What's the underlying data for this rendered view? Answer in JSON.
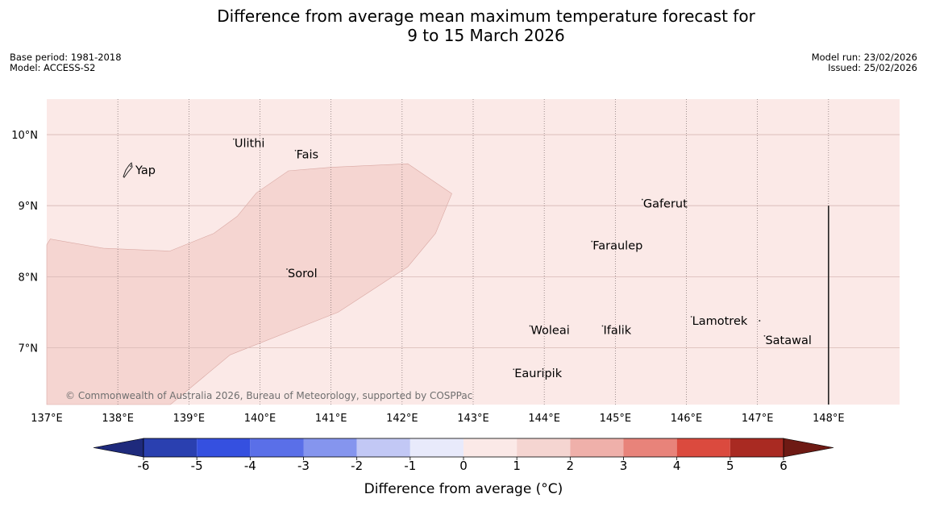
{
  "title": {
    "line1": "Difference from average mean maximum temperature forecast for",
    "line2": "9 to 15 March 2026"
  },
  "meta": {
    "base_period": "Base period: 1981-2018",
    "model": "Model: ACCESS-S2",
    "model_run": "Model run: 23/02/2026",
    "issued": "Issued: 25/02/2026"
  },
  "map": {
    "background_color": "#fbe9e7",
    "anomaly_band_color": "#f5d5d1",
    "extent": {
      "lon": [
        137,
        149
      ],
      "lat": [
        6.2,
        10.5
      ]
    },
    "lon_ticks": [
      {
        "lon": 137,
        "label": "137°E"
      },
      {
        "lon": 138,
        "label": "138°E"
      },
      {
        "lon": 139,
        "label": "139°E"
      },
      {
        "lon": 140,
        "label": "140°E"
      },
      {
        "lon": 141,
        "label": "141°E"
      },
      {
        "lon": 142,
        "label": "142°E"
      },
      {
        "lon": 143,
        "label": "143°E"
      },
      {
        "lon": 144,
        "label": "144°E"
      },
      {
        "lon": 145,
        "label": "145°E"
      },
      {
        "lon": 146,
        "label": "146°E"
      },
      {
        "lon": 147,
        "label": "147°E"
      },
      {
        "lon": 148,
        "label": "148°E"
      }
    ],
    "lat_ticks": [
      {
        "lat": 10,
        "label": "10°N"
      },
      {
        "lat": 9,
        "label": "9°N"
      },
      {
        "lat": 8,
        "label": "8°N"
      },
      {
        "lat": 7,
        "label": "7°N"
      }
    ],
    "places": [
      {
        "name": "Yap",
        "lon": 138.18,
        "lat": 9.5
      },
      {
        "name": "Ulithi",
        "lon": 139.63,
        "lat": 9.88
      },
      {
        "name": "Fais",
        "lon": 140.5,
        "lat": 9.72
      },
      {
        "name": "Sorol",
        "lon": 140.38,
        "lat": 8.05
      },
      {
        "name": "Gaferut",
        "lon": 145.38,
        "lat": 9.03
      },
      {
        "name": "Faraulep",
        "lon": 144.67,
        "lat": 8.44
      },
      {
        "name": "Woleai",
        "lon": 143.8,
        "lat": 7.25
      },
      {
        "name": "Ifalik",
        "lon": 144.82,
        "lat": 7.25
      },
      {
        "name": "Lamotrek",
        "lon": 146.07,
        "lat": 7.38
      },
      {
        "name": "Satawal",
        "lon": 147.1,
        "lat": 7.11
      },
      {
        "name": "Eauripik",
        "lon": 143.57,
        "lat": 6.64
      }
    ],
    "region_boundary": {
      "lon": 148.0,
      "lat_range": [
        6.2,
        9.0
      ]
    },
    "anomaly_band": {
      "anomaly_range": "1 to 2",
      "polygon": [
        [
          137.0,
          8.45
        ],
        [
          137.05,
          8.53
        ],
        [
          137.8,
          8.4
        ],
        [
          138.73,
          8.36
        ],
        [
          139.35,
          8.61
        ],
        [
          139.68,
          8.85
        ],
        [
          139.95,
          9.18
        ],
        [
          140.4,
          9.49
        ],
        [
          141.0,
          9.54
        ],
        [
          142.08,
          9.59
        ],
        [
          142.7,
          9.17
        ],
        [
          142.47,
          8.61
        ],
        [
          142.08,
          8.14
        ],
        [
          141.1,
          7.5
        ],
        [
          139.58,
          6.9
        ],
        [
          138.74,
          6.2
        ],
        [
          137.0,
          6.2
        ]
      ]
    },
    "copyright": "© Commonwealth of Australia 2026, Bureau of Meteorology, supported by COSPPac"
  },
  "colorbar": {
    "title": "Difference from average (°C)",
    "ticks": [
      "-6",
      "-5",
      "-4",
      "-3",
      "-2",
      "-1",
      "0",
      "1",
      "2",
      "3",
      "4",
      "5",
      "6"
    ],
    "under_color": "#1e2a7c",
    "over_color": "#6e1a14",
    "bins": [
      {
        "from": -6,
        "to": -5,
        "color": "#2a40b0"
      },
      {
        "from": -5,
        "to": -4,
        "color": "#3550e0"
      },
      {
        "from": -4,
        "to": -3,
        "color": "#5a6fe8"
      },
      {
        "from": -3,
        "to": -2,
        "color": "#8595ee"
      },
      {
        "from": -2,
        "to": -1,
        "color": "#c2c8f5"
      },
      {
        "from": -1,
        "to": 0,
        "color": "#e8eafb"
      },
      {
        "from": 0,
        "to": 1,
        "color": "#fbe9e7"
      },
      {
        "from": 1,
        "to": 2,
        "color": "#f5d5d1"
      },
      {
        "from": 2,
        "to": 3,
        "color": "#efb0aa"
      },
      {
        "from": 3,
        "to": 4,
        "color": "#e8837a"
      },
      {
        "from": 4,
        "to": 5,
        "color": "#db4a3e"
      },
      {
        "from": 5,
        "to": 6,
        "color": "#a92a22"
      }
    ]
  }
}
